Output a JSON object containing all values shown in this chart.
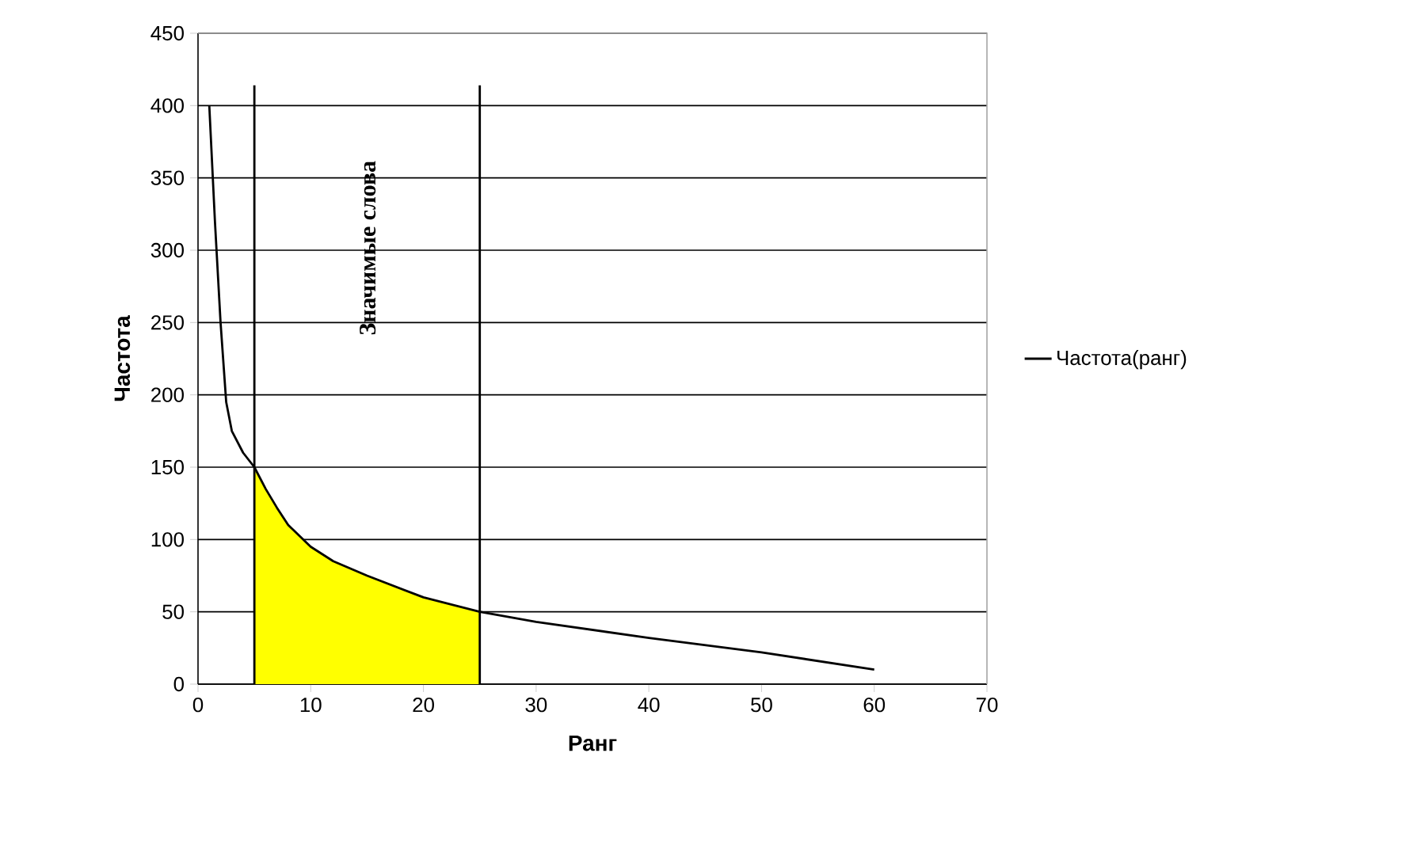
{
  "chart_data": {
    "type": "line",
    "xlabel": "Ранг",
    "ylabel": "Частота",
    "x": [
      1,
      1.5,
      2,
      2.5,
      3,
      4,
      5,
      6,
      7,
      8,
      10,
      12,
      15,
      20,
      25,
      30,
      40,
      50,
      60
    ],
    "series": [
      {
        "type": "area",
        "color": "#ffff00",
        "x": [
          5,
          6,
          7,
          8,
          10,
          12,
          15,
          20,
          25
        ],
        "values": [
          150,
          135,
          122,
          110,
          95,
          85,
          75,
          60,
          50
        ]
      },
      {
        "name": "Частота(ранг)",
        "color": "#000000",
        "values": [
          400,
          320,
          250,
          195,
          175,
          160,
          150,
          135,
          122,
          110,
          95,
          85,
          75,
          60,
          50,
          43,
          32,
          22,
          10
        ]
      }
    ],
    "ref_lines": [
      {
        "axis": "x",
        "value": 5,
        "color": "#000000"
      },
      {
        "axis": "x",
        "value": 25,
        "color": "#000000"
      }
    ],
    "annotations": [
      "Значимые слова"
    ],
    "xlim": [
      0,
      70
    ],
    "xticks": [
      0,
      10,
      20,
      30,
      40,
      50,
      60,
      70
    ],
    "ylim": [
      0,
      450
    ],
    "yticks": [
      0,
      50,
      100,
      150,
      200,
      250,
      300,
      350,
      400,
      450
    ],
    "grid": "y",
    "legend": "right",
    "marker": "none",
    "line_style": "solid"
  }
}
